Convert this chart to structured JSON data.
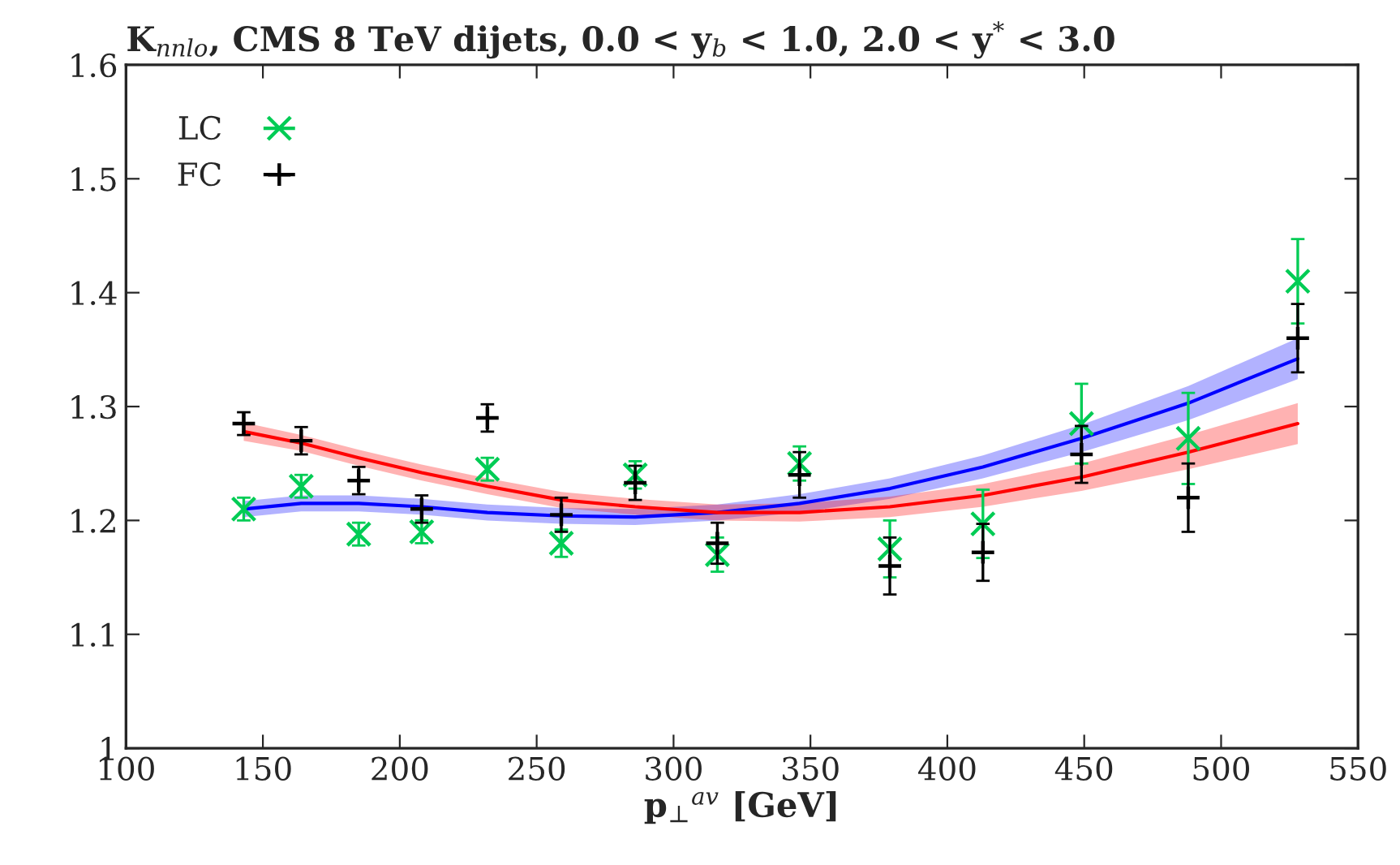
{
  "chart_data": {
    "type": "scatter",
    "title": "K$_{nnlo}$, CMS 8 TeV dijets, 0.0 < y$_{b}$ < 1.0, 2.0 < y$^{*}$ < 3.0",
    "xlabel": "p$_{⊥}$$^{av}$ [GeV]",
    "xlim": [
      100,
      550
    ],
    "xticks": [
      100,
      150,
      200,
      250,
      300,
      350,
      400,
      450,
      500,
      550
    ],
    "ylim": [
      1,
      1.6
    ],
    "yticks": [
      1,
      1.1,
      1.2,
      1.3,
      1.4,
      1.5,
      1.6
    ],
    "grid": false,
    "legend": "top left",
    "series": [
      {
        "type": "line",
        "color": "#0000ff",
        "x": [
          143,
          164,
          185,
          208,
          232,
          259,
          286,
          316,
          346,
          379,
          413,
          449,
          488,
          528
        ],
        "values": [
          1.21,
          1.215,
          1.215,
          1.212,
          1.207,
          1.204,
          1.203,
          1.207,
          1.215,
          1.228,
          1.247,
          1.272,
          1.303,
          1.342
        ],
        "lower": [
          1.203,
          1.208,
          1.208,
          1.205,
          1.2,
          1.197,
          1.196,
          1.2,
          1.207,
          1.219,
          1.237,
          1.26,
          1.288,
          1.324
        ],
        "upper": [
          1.217,
          1.222,
          1.222,
          1.219,
          1.214,
          1.211,
          1.21,
          1.214,
          1.223,
          1.237,
          1.257,
          1.284,
          1.318,
          1.36
        ]
      },
      {
        "type": "line",
        "color": "#ff0000",
        "x": [
          143,
          164,
          185,
          208,
          232,
          259,
          286,
          316,
          346,
          379,
          413,
          449,
          488,
          528
        ],
        "values": [
          1.278,
          1.268,
          1.255,
          1.242,
          1.23,
          1.218,
          1.212,
          1.207,
          1.207,
          1.212,
          1.222,
          1.238,
          1.26,
          1.285
        ],
        "lower": [
          1.27,
          1.261,
          1.248,
          1.235,
          1.223,
          1.211,
          1.205,
          1.2,
          1.199,
          1.203,
          1.212,
          1.226,
          1.245,
          1.267
        ],
        "upper": [
          1.286,
          1.275,
          1.262,
          1.249,
          1.237,
          1.225,
          1.219,
          1.214,
          1.215,
          1.221,
          1.232,
          1.25,
          1.275,
          1.303
        ]
      },
      {
        "name": "LC",
        "marker": "cross",
        "color": "#00cc55",
        "x": [
          143,
          164,
          185,
          208,
          232,
          259,
          286,
          316,
          346,
          379,
          413,
          449,
          488,
          528
        ],
        "values": [
          1.21,
          1.23,
          1.188,
          1.19,
          1.245,
          1.18,
          1.24,
          1.17,
          1.25,
          1.175,
          1.197,
          1.285,
          1.272,
          1.41
        ],
        "errors": [
          0.01,
          0.01,
          0.01,
          0.01,
          0.01,
          0.012,
          0.012,
          0.015,
          0.015,
          0.025,
          0.03,
          0.035,
          0.04,
          0.037
        ]
      },
      {
        "name": "FC",
        "marker": "plus",
        "color": "#000000",
        "x": [
          143,
          164,
          185,
          208,
          232,
          259,
          286,
          316,
          346,
          379,
          413,
          449,
          488,
          528
        ],
        "values": [
          1.285,
          1.27,
          1.235,
          1.21,
          1.29,
          1.205,
          1.233,
          1.18,
          1.24,
          1.16,
          1.172,
          1.258,
          1.22,
          1.36
        ],
        "errors": [
          0.01,
          0.012,
          0.012,
          0.012,
          0.012,
          0.015,
          0.015,
          0.018,
          0.02,
          0.025,
          0.025,
          0.025,
          0.03,
          0.03
        ]
      }
    ]
  }
}
